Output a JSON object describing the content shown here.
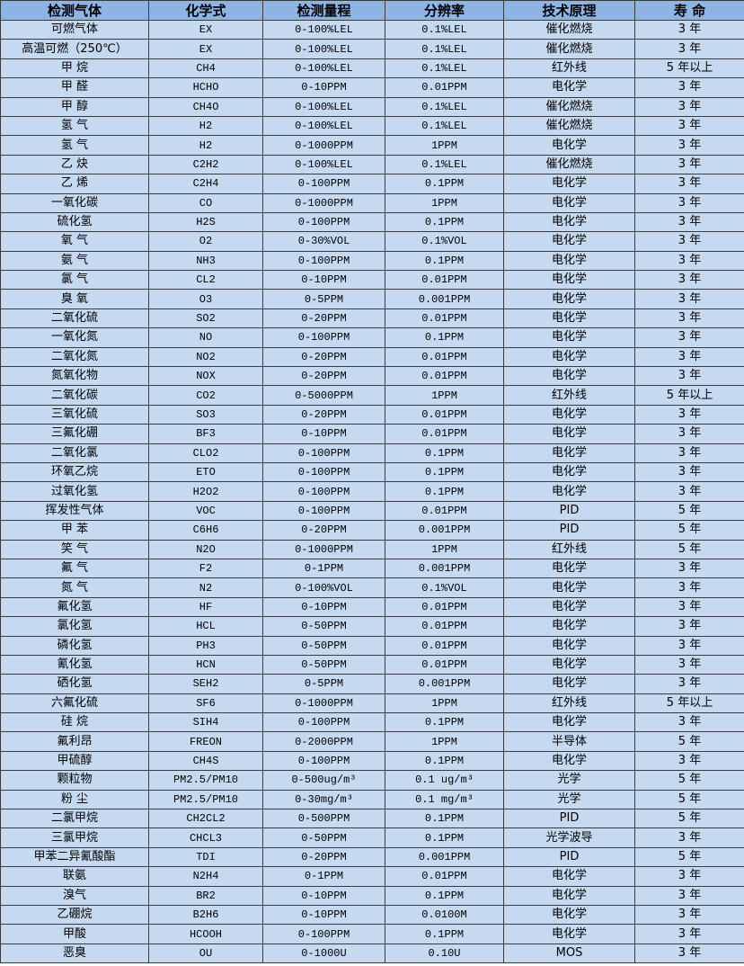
{
  "colors": {
    "header_bg": "#8db4e2",
    "row_bg": "#c5d9f1",
    "border": "#3a3a3a"
  },
  "headers": [
    "检测气体",
    "化学式",
    "检测量程",
    "分辨率",
    "技术原理",
    "寿 命"
  ],
  "rows": [
    [
      "可燃气体",
      "EX",
      "0-100%LEL",
      "0.1%LEL",
      "催化燃烧",
      "3 年"
    ],
    [
      "高温可燃（250℃）",
      "EX",
      "0-100%LEL",
      "0.1%LEL",
      "催化燃烧",
      "3 年"
    ],
    [
      "甲 烷",
      "CH4",
      "0-100%LEL",
      "0.1%LEL",
      "红外线",
      "5 年以上"
    ],
    [
      "甲 醛",
      "HCHO",
      "0-10PPM",
      "0.01PPM",
      "电化学",
      "3 年"
    ],
    [
      "甲 醇",
      "CH4O",
      "0-100%LEL",
      "0.1%LEL",
      "催化燃烧",
      "3 年"
    ],
    [
      "氢 气",
      "H2",
      "0-100%LEL",
      "0.1%LEL",
      "催化燃烧",
      "3 年"
    ],
    [
      "氢 气",
      "H2",
      "0-1000PPM",
      "1PPM",
      "电化学",
      "3 年"
    ],
    [
      "乙 炔",
      "C2H2",
      "0-100%LEL",
      "0.1%LEL",
      "催化燃烧",
      "3 年"
    ],
    [
      "乙 烯",
      "C2H4",
      "0-100PPM",
      "0.1PPM",
      "电化学",
      "3 年"
    ],
    [
      "一氧化碳",
      "CO",
      "0-1000PPM",
      "1PPM",
      "电化学",
      "3 年"
    ],
    [
      "硫化氢",
      "H2S",
      "0-100PPM",
      "0.1PPM",
      "电化学",
      "3 年"
    ],
    [
      "氧 气",
      "O2",
      "0-30%VOL",
      "0.1%VOL",
      "电化学",
      "3 年"
    ],
    [
      "氨 气",
      "NH3",
      "0-100PPM",
      "0.1PPM",
      "电化学",
      "3 年"
    ],
    [
      "氯 气",
      "CL2",
      "0-10PPM",
      "0.01PPM",
      "电化学",
      "3 年"
    ],
    [
      "臭 氧",
      "O3",
      "0-5PPM",
      "0.001PPM",
      "电化学",
      "3 年"
    ],
    [
      "二氧化硫",
      "SO2",
      "0-20PPM",
      "0.01PPM",
      "电化学",
      "3 年"
    ],
    [
      "一氧化氮",
      "NO",
      "0-100PPM",
      "0.1PPM",
      "电化学",
      "3 年"
    ],
    [
      "二氧化氮",
      "NO2",
      "0-20PPM",
      "0.01PPM",
      "电化学",
      "3 年"
    ],
    [
      "氮氧化物",
      "NOX",
      "0-20PPM",
      "0.01PPM",
      "电化学",
      "3 年"
    ],
    [
      "二氧化碳",
      "CO2",
      "0-5000PPM",
      "1PPM",
      "红外线",
      "5 年以上"
    ],
    [
      "三氧化硫",
      "SO3",
      "0-20PPM",
      "0.01PPM",
      "电化学",
      "3 年"
    ],
    [
      "三氟化硼",
      "BF3",
      "0-10PPM",
      "0.01PPM",
      "电化学",
      "3 年"
    ],
    [
      "二氧化氯",
      "CLO2",
      "0-100PPM",
      "0.1PPM",
      "电化学",
      "3 年"
    ],
    [
      "环氧乙烷",
      "ETO",
      "0-100PPM",
      "0.1PPM",
      "电化学",
      "3 年"
    ],
    [
      "过氧化氢",
      "H2O2",
      "0-100PPM",
      "0.1PPM",
      "电化学",
      "3 年"
    ],
    [
      "挥发性气体",
      "VOC",
      "0-100PPM",
      "0.01PPM",
      "PID",
      "5 年"
    ],
    [
      "甲 苯",
      "C6H6",
      "0-20PPM",
      "0.001PPM",
      "PID",
      "5 年"
    ],
    [
      "笑 气",
      "N2O",
      "0-1000PPM",
      "1PPM",
      "红外线",
      "5 年"
    ],
    [
      "氟 气",
      "F2",
      "0-1PPM",
      "0.001PPM",
      "电化学",
      "3 年"
    ],
    [
      "氮 气",
      "N2",
      "0-100%VOL",
      "0.1%VOL",
      "电化学",
      "3 年"
    ],
    [
      "氟化氢",
      "HF",
      "0-10PPM",
      "0.01PPM",
      "电化学",
      "3 年"
    ],
    [
      "氯化氢",
      "HCL",
      "0-50PPM",
      "0.01PPM",
      "电化学",
      "3 年"
    ],
    [
      "磷化氢",
      "PH3",
      "0-50PPM",
      "0.01PPM",
      "电化学",
      "3 年"
    ],
    [
      "氰化氢",
      "HCN",
      "0-50PPM",
      "0.01PPM",
      "电化学",
      "3 年"
    ],
    [
      "硒化氢",
      "SEH2",
      "0-5PPM",
      "0.001PPM",
      "电化学",
      "3 年"
    ],
    [
      "六氟化硫",
      "SF6",
      "0-1000PPM",
      "1PPM",
      "红外线",
      "5 年以上"
    ],
    [
      "硅 烷",
      "SIH4",
      "0-100PPM",
      "0.1PPM",
      "电化学",
      "3 年"
    ],
    [
      "氟利昂",
      "FREON",
      "0-2000PPM",
      "1PPM",
      "半导体",
      "5 年"
    ],
    [
      "甲硫醇",
      "CH4S",
      "0-100PPM",
      "0.1PPM",
      "电化学",
      "3 年"
    ],
    [
      "颗粒物",
      "PM2.5/PM10",
      "0-500ug/m³",
      "0.1 ug/m³",
      "光学",
      "5 年"
    ],
    [
      "粉 尘",
      "PM2.5/PM10",
      "0-30mg/m³",
      "0.1 mg/m³",
      "光学",
      "5 年"
    ],
    [
      "二氯甲烷",
      "CH2CL2",
      "0-500PPM",
      "0.1PPM",
      "PID",
      "5 年"
    ],
    [
      "三氯甲烷",
      "CHCL3",
      "0-50PPM",
      "0.1PPM",
      "光学波导",
      "3 年"
    ],
    [
      "甲苯二异氰酸酯",
      "TDI",
      "0-20PPM",
      "0.001PPM",
      "PID",
      "5 年"
    ],
    [
      "联氨",
      "N2H4",
      "0-1PPM",
      "0.01PPM",
      "电化学",
      "3 年"
    ],
    [
      "溴气",
      "BR2",
      "0-10PPM",
      "0.1PPM",
      "电化学",
      "3 年"
    ],
    [
      "乙硼烷",
      "B2H6",
      "0-10PPM",
      "0.0100M",
      "电化学",
      "3 年"
    ],
    [
      "甲酸",
      "HCOOH",
      "0-100PPM",
      "0.1PPM",
      "电化学",
      "3 年"
    ],
    [
      "恶臭",
      "OU",
      "0-1000U",
      "0.10U",
      "MOS",
      "3 年"
    ]
  ]
}
